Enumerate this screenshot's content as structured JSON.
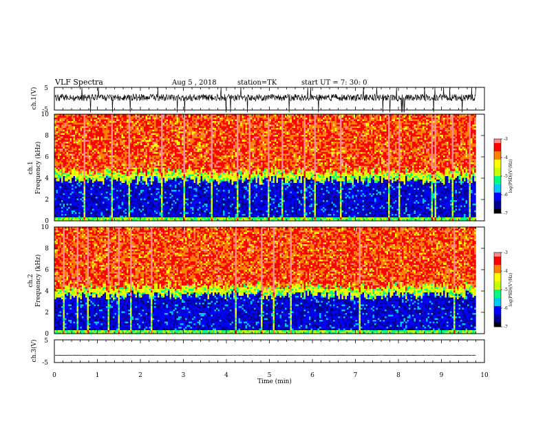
{
  "header": {
    "title": "VLF Spectra",
    "date": "Aug 5 , 2018",
    "station": "station=TK",
    "start_ut": "start UT = 7: 30: 0"
  },
  "colors": {
    "colormap": [
      "#000000",
      "#00008b",
      "#0000ff",
      "#00c8ff",
      "#00ff80",
      "#c8ff00",
      "#ffff00",
      "#ff8000",
      "#ff0000",
      "#ff8c8c",
      "#ffffff"
    ],
    "trace": "#000000"
  },
  "chart_data": [
    {
      "type": "line",
      "name": "ch1-waveform",
      "ylabel": "ch.1(V)",
      "yticks": [
        "5",
        "-5"
      ],
      "ylim": [
        -5,
        5
      ],
      "xlim": [
        0,
        10
      ],
      "data_extent_min": 9.8,
      "baseline": 0.5,
      "noise_amplitude": 1.5
    },
    {
      "type": "heatmap",
      "name": "ch1-spectrogram",
      "ylabel_line1": "ch.1",
      "ylabel_line2": "Frequency (kHz)",
      "yticks": [
        "0",
        "2",
        "4",
        "6",
        "8",
        "10"
      ],
      "ylim": [
        0,
        10
      ],
      "xlim": [
        0,
        10
      ],
      "data_extent_min": 9.8,
      "low_band_top_khz": 4.2,
      "colorbar": {
        "label": "log(PSD)(V²/Hz)",
        "ticks": [
          "-3",
          "-4",
          "-5",
          "-6",
          "-7"
        ],
        "range": [
          -7,
          -3
        ]
      }
    },
    {
      "type": "heatmap",
      "name": "ch2-spectrogram",
      "ylabel_line1": "ch.2",
      "ylabel_line2": "Frequency (kHz)",
      "yticks": [
        "0",
        "2",
        "4",
        "6",
        "8",
        "10"
      ],
      "ylim": [
        0,
        10
      ],
      "xlim": [
        0,
        10
      ],
      "data_extent_min": 9.8,
      "low_band_top_khz": 4.0,
      "colorbar": {
        "label": "log(PSD)(V²/Hz)",
        "ticks": [
          "-3",
          "-4",
          "-5",
          "-6",
          "-7"
        ],
        "range": [
          -7,
          -3
        ]
      }
    },
    {
      "type": "line",
      "name": "ch3-waveform",
      "ylabel": "ch.3(V)",
      "yticks": [
        "5",
        "-5"
      ],
      "ylim": [
        -5,
        5
      ],
      "xlim": [
        0,
        10
      ],
      "data_extent_min": 9.8,
      "baseline": -1.8,
      "noise_amplitude": 0.1
    }
  ],
  "xaxis": {
    "label": "Time (min)",
    "ticks": [
      "0",
      "1",
      "2",
      "3",
      "4",
      "5",
      "6",
      "7",
      "8",
      "9",
      "10"
    ],
    "range": [
      0,
      10
    ]
  }
}
